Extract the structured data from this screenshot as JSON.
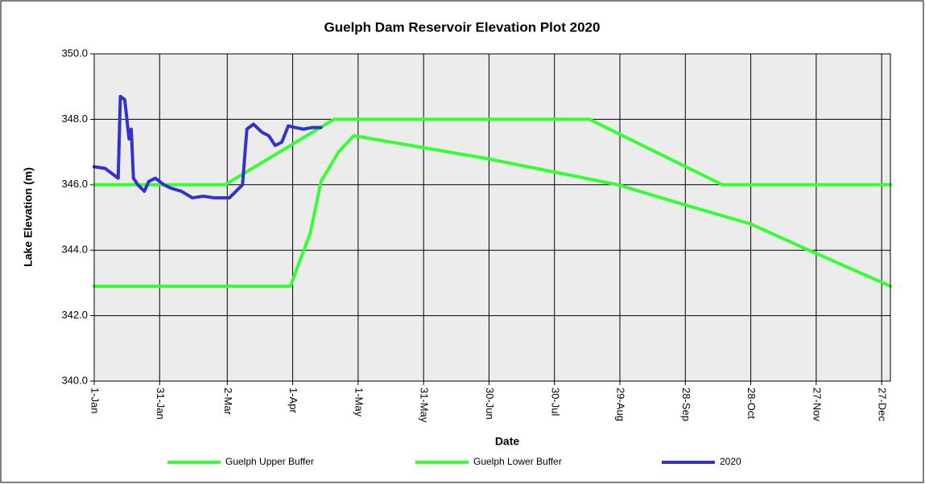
{
  "chart_data": {
    "type": "line",
    "title": "Guelph Dam Reservoir Elevation Plot 2020",
    "xlabel": "Date",
    "ylabel": "Lake Elevation (m)",
    "xlim": [
      0,
      365
    ],
    "ylim": [
      340,
      350
    ],
    "xticks": [
      {
        "value": 0,
        "label": "1-Jan"
      },
      {
        "value": 30,
        "label": "31-Jan"
      },
      {
        "value": 61,
        "label": "2-Mar"
      },
      {
        "value": 91,
        "label": "1-Apr"
      },
      {
        "value": 121,
        "label": "1-May"
      },
      {
        "value": 151,
        "label": "31-May"
      },
      {
        "value": 181,
        "label": "30-Jun"
      },
      {
        "value": 211,
        "label": "30-Jul"
      },
      {
        "value": 241,
        "label": "29-Aug"
      },
      {
        "value": 271,
        "label": "28-Sep"
      },
      {
        "value": 301,
        "label": "28-Oct"
      },
      {
        "value": 331,
        "label": "27-Nov"
      },
      {
        "value": 361,
        "label": "27-Dec"
      }
    ],
    "yticks": [
      {
        "value": 340,
        "label": "340.0"
      },
      {
        "value": 342,
        "label": "342.0"
      },
      {
        "value": 344,
        "label": "344.0"
      },
      {
        "value": 346,
        "label": "346.0"
      },
      {
        "value": 348,
        "label": "348.0"
      },
      {
        "value": 350,
        "label": "350.0"
      }
    ],
    "grid": true,
    "legend": "bottom",
    "series": [
      {
        "name": "Guelph Upper Buffer",
        "color": "#33ff33",
        "x": [
          0,
          60,
          110,
          227,
          288,
          365
        ],
        "values": [
          346,
          346,
          348,
          348,
          346,
          346
        ]
      },
      {
        "name": "Guelph Lower Buffer",
        "color": "#33ff33",
        "x": [
          0,
          90,
          95,
          99,
          104,
          112,
          119,
          180,
          240,
          270,
          301,
          331,
          365
        ],
        "values": [
          342.9,
          342.9,
          343.8,
          344.5,
          346.1,
          347.0,
          347.5,
          346.8,
          346.0,
          345.4,
          344.8,
          343.9,
          342.9
        ]
      },
      {
        "name": "2020",
        "color": "#3333cc",
        "x": [
          0,
          5,
          9,
          11,
          12,
          14,
          16,
          17,
          18,
          20,
          23,
          25,
          28,
          32,
          35,
          40,
          45,
          50,
          55,
          62,
          68,
          70,
          73,
          77,
          80,
          83,
          86,
          89,
          92,
          96,
          100,
          104
        ],
        "values": [
          346.55,
          346.5,
          346.3,
          346.2,
          348.7,
          348.6,
          347.4,
          347.7,
          346.2,
          346.0,
          345.8,
          346.1,
          346.2,
          346.0,
          345.9,
          345.8,
          345.6,
          345.65,
          345.6,
          345.6,
          346.0,
          347.7,
          347.85,
          347.6,
          347.5,
          347.2,
          347.3,
          347.8,
          347.75,
          347.7,
          347.75,
          347.75
        ]
      }
    ]
  }
}
